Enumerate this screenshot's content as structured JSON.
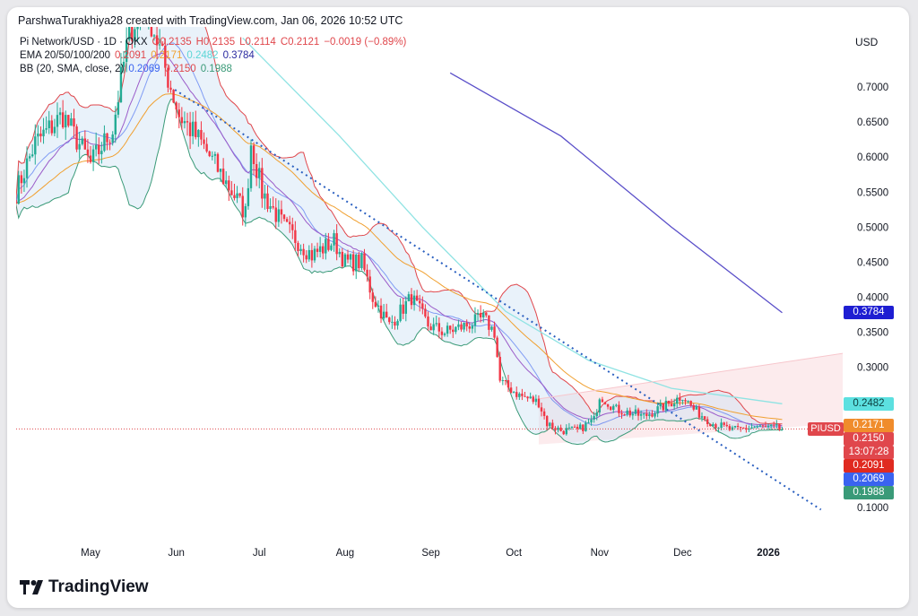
{
  "credit": "ParshwaTurakhiya28 created with TradingView.com, Jan 06, 2026 10:52 UTC",
  "currency": "USD",
  "brand": "TradingView",
  "legend": {
    "symbol": "Pi Network/USD · 1D · OKX",
    "o": "O0.2135",
    "h": "H0.2135",
    "l": "L0.2114",
    "c": "C0.2121",
    "change": "−0.0019 (−0.89%)",
    "ema_label": "EMA 20/50/100/200",
    "ema_values": [
      "0.2091",
      "0.2171",
      "0.2482",
      "0.3784"
    ],
    "bb_label": "BB (20, SMA, close, 2)",
    "bb_values": [
      "0.2069",
      "0.2150",
      "0.1988"
    ]
  },
  "price_tags": [
    {
      "text": "0.3784",
      "color": "#1e1ed2",
      "value": 0.3784
    },
    {
      "text": "0.2482",
      "color": "#5ce0e0",
      "value": 0.2482
    },
    {
      "text": "0.2171",
      "color": "#f08c2c",
      "value": 0.2171
    },
    {
      "text": "0.2150",
      "color": "#e0474c",
      "value": 0.215
    },
    {
      "text": "13:07:28",
      "color": "#e0474c",
      "value": 0.2121
    },
    {
      "text": "0.2091",
      "color": "#e02a20",
      "value": 0.2091
    },
    {
      "text": "0.2069",
      "color": "#3a63f0",
      "value": 0.2069
    },
    {
      "text": "0.1988",
      "color": "#3a9a78",
      "value": 0.1988
    }
  ],
  "symbol_tag": "PIUSD",
  "chart_data": {
    "type": "candlestick",
    "title": "Pi Network/USD · 1D · OKX",
    "y_ticks": [
      "0.7000",
      "0.6500",
      "0.6000",
      "0.5500",
      "0.5000",
      "0.4500",
      "0.4000",
      "0.3500",
      "0.3000",
      "0.1000"
    ],
    "y_tick_values": [
      0.7,
      0.65,
      0.6,
      0.55,
      0.5,
      0.45,
      0.4,
      0.35,
      0.3,
      0.1
    ],
    "x_ticks": [
      "May",
      "Jun",
      "Jul",
      "Aug",
      "Sep",
      "Oct",
      "Nov",
      "Dec",
      "2026"
    ],
    "x_tick_days": [
      30,
      61,
      91,
      122,
      153,
      183,
      214,
      244,
      275
    ],
    "close_keypoints": [
      [
        3,
        0.55
      ],
      [
        10,
        0.62
      ],
      [
        20,
        0.66
      ],
      [
        30,
        0.59
      ],
      [
        38,
        0.64
      ],
      [
        44,
        0.78
      ],
      [
        50,
        0.82
      ],
      [
        56,
        0.74
      ],
      [
        62,
        0.66
      ],
      [
        70,
        0.62
      ],
      [
        78,
        0.57
      ],
      [
        86,
        0.52
      ],
      [
        88,
        0.62
      ],
      [
        92,
        0.55
      ],
      [
        100,
        0.5
      ],
      [
        110,
        0.46
      ],
      [
        118,
        0.48
      ],
      [
        122,
        0.45
      ],
      [
        128,
        0.45
      ],
      [
        132,
        0.4
      ],
      [
        138,
        0.36
      ],
      [
        146,
        0.4
      ],
      [
        152,
        0.36
      ],
      [
        158,
        0.35
      ],
      [
        166,
        0.36
      ],
      [
        172,
        0.37
      ],
      [
        176,
        0.35
      ],
      [
        178,
        0.28
      ],
      [
        185,
        0.26
      ],
      [
        192,
        0.25
      ],
      [
        195,
        0.22
      ],
      [
        200,
        0.21
      ],
      [
        206,
        0.21
      ],
      [
        212,
        0.225
      ],
      [
        214,
        0.26
      ],
      [
        220,
        0.24
      ],
      [
        230,
        0.23
      ],
      [
        240,
        0.25
      ],
      [
        244,
        0.26
      ],
      [
        248,
        0.24
      ],
      [
        255,
        0.22
      ],
      [
        262,
        0.21
      ],
      [
        270,
        0.215
      ],
      [
        280,
        0.212
      ]
    ],
    "ema100_keypoints": [
      [
        85,
        0.77
      ],
      [
        120,
        0.63
      ],
      [
        150,
        0.5
      ],
      [
        180,
        0.38
      ],
      [
        210,
        0.31
      ],
      [
        240,
        0.27
      ],
      [
        280,
        0.248
      ]
    ],
    "ema200_keypoints": [
      [
        160,
        0.72
      ],
      [
        200,
        0.63
      ],
      [
        240,
        0.5
      ],
      [
        280,
        0.378
      ]
    ],
    "trendline": [
      [
        60.5,
        0.696
      ],
      [
        294,
        0.097
      ]
    ],
    "channel_top": [
      [
        192,
        0.255
      ],
      [
        302,
        0.32
      ]
    ],
    "channel_bottom": [
      [
        192,
        0.19
      ],
      [
        302,
        0.22
      ]
    ],
    "last_price": 0.2121
  }
}
